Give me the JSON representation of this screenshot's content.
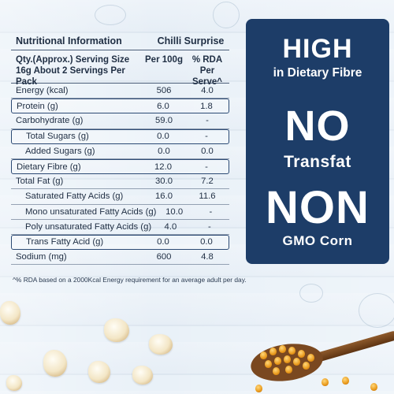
{
  "table": {
    "title": "Nutritional Information",
    "variant": "Chilli Surprise",
    "col_head_1": "Qty.(Approx.) Serving Size 16g About 2 Servings Per Pack",
    "col_head_2": "Per 100g",
    "col_head_3": "% RDA Per Serve^",
    "rows": [
      {
        "label": "Energy (kcal)",
        "per100": "506",
        "rda": "4.0"
      },
      {
        "label": "Protein (g)",
        "per100": "6.0",
        "rda": "1.8"
      },
      {
        "label": "Carbohydrate (g)",
        "per100": "59.0",
        "rda": "-"
      },
      {
        "label": "Total Sugars (g)",
        "per100": "0.0",
        "rda": "-"
      },
      {
        "label": "Added Sugars (g)",
        "per100": "0.0",
        "rda": "0.0"
      },
      {
        "label": "Dietary Fibre (g)",
        "per100": "12.0",
        "rda": "-"
      },
      {
        "label": "Total Fat (g)",
        "per100": "30.0",
        "rda": "7.2"
      },
      {
        "label": "Saturated Fatty Acids (g)",
        "per100": "16.0",
        "rda": "11.6"
      },
      {
        "label": "Mono unsaturated Fatty Acids (g)",
        "per100": "10.0",
        "rda": "-"
      },
      {
        "label": "Poly unsaturated Fatty Acids (g)",
        "per100": "4.0",
        "rda": "-"
      },
      {
        "label": "Trans Fatty Acid (g)",
        "per100": "0.0",
        "rda": "0.0"
      },
      {
        "label": "Sodium (mg)",
        "per100": "600",
        "rda": "4.8"
      }
    ],
    "footnote": "^% RDA based on a 2000Kcal Energy requirement for an average adult per day."
  },
  "claims": {
    "high": "HIGH",
    "high_sub": "in Dietary Fibre",
    "no": "NO",
    "no_sub": "Transfat",
    "non": "NON",
    "non_sub": "GMO Corn"
  },
  "colors": {
    "panel": "#1d3d68",
    "text": "#1f2e43",
    "background": "#e9f0f7"
  }
}
